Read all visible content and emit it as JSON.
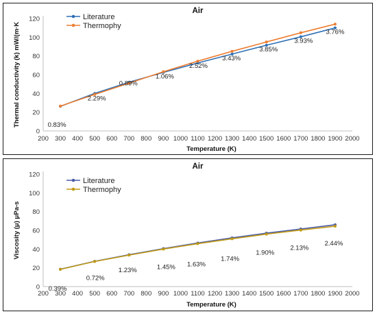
{
  "chart_data": [
    {
      "type": "line",
      "title": "Air",
      "xlabel": "Temperature (K)",
      "ylabel": "Thermal conductivity (k) mW/(m·K",
      "xlim": [
        200,
        2000
      ],
      "ylim": [
        0,
        120
      ],
      "xticks": [
        "200",
        "300",
        "400",
        "500",
        "600",
        "700",
        "800",
        "900",
        "1000",
        "1100",
        "1200",
        "1300",
        "1400",
        "1500",
        "1600",
        "1700",
        "1800",
        "1900",
        "2000"
      ],
      "yticks": [
        "0",
        "20",
        "40",
        "60",
        "80",
        "100",
        "120"
      ],
      "grid": false,
      "legend": "top-left",
      "x": [
        300,
        500,
        700,
        900,
        1100,
        1300,
        1500,
        1700,
        1900
      ],
      "series": [
        {
          "name": "Literature",
          "color": "#2e6fb5",
          "values": [
            26.3,
            40.0,
            52.0,
            62.5,
            72.5,
            82.0,
            91.5,
            100.5,
            110.0
          ]
        },
        {
          "name": "Thermophy",
          "color": "#ed7d31",
          "values": [
            26.5,
            39.0,
            51.0,
            63.2,
            74.5,
            85.0,
            95.0,
            104.8,
            114.0
          ]
        }
      ],
      "annotations": [
        "0.83%",
        "2.29%",
        "0.89%",
        "1.06%",
        "2.52%",
        "3.43%",
        "3.85%",
        "3.93%",
        "3.76%"
      ]
    },
    {
      "type": "line",
      "title": "Air",
      "xlabel": "Temperature (K)",
      "ylabel": "Viscosity (μ) μPa-s",
      "xlim": [
        200,
        2000
      ],
      "ylim": [
        0,
        120
      ],
      "xticks": [
        "200",
        "300",
        "400",
        "500",
        "600",
        "700",
        "800",
        "900",
        "1000",
        "1100",
        "1200",
        "1300",
        "1400",
        "1500",
        "1600",
        "1700",
        "1800",
        "1900",
        "2000"
      ],
      "yticks": [
        "0",
        "20",
        "40",
        "60",
        "80",
        "100",
        "120"
      ],
      "grid": false,
      "legend": "top-left",
      "x": [
        300,
        500,
        700,
        900,
        1100,
        1300,
        1500,
        1700,
        1900
      ],
      "series": [
        {
          "name": "Literature",
          "color": "#4a5aa8",
          "values": [
            18.5,
            27.0,
            34.0,
            40.5,
            46.5,
            52.0,
            57.0,
            61.5,
            66.0
          ]
        },
        {
          "name": "Thermophy",
          "color": "#c09a14",
          "values": [
            18.4,
            26.8,
            33.6,
            40.0,
            45.8,
            51.0,
            56.0,
            60.3,
            64.5
          ]
        }
      ],
      "annotations": [
        "0.39%",
        "0.72%",
        "1.23%",
        "1.45%",
        "1.63%",
        "1.74%",
        "1.90%",
        "2.13%",
        "2.44%"
      ]
    }
  ]
}
